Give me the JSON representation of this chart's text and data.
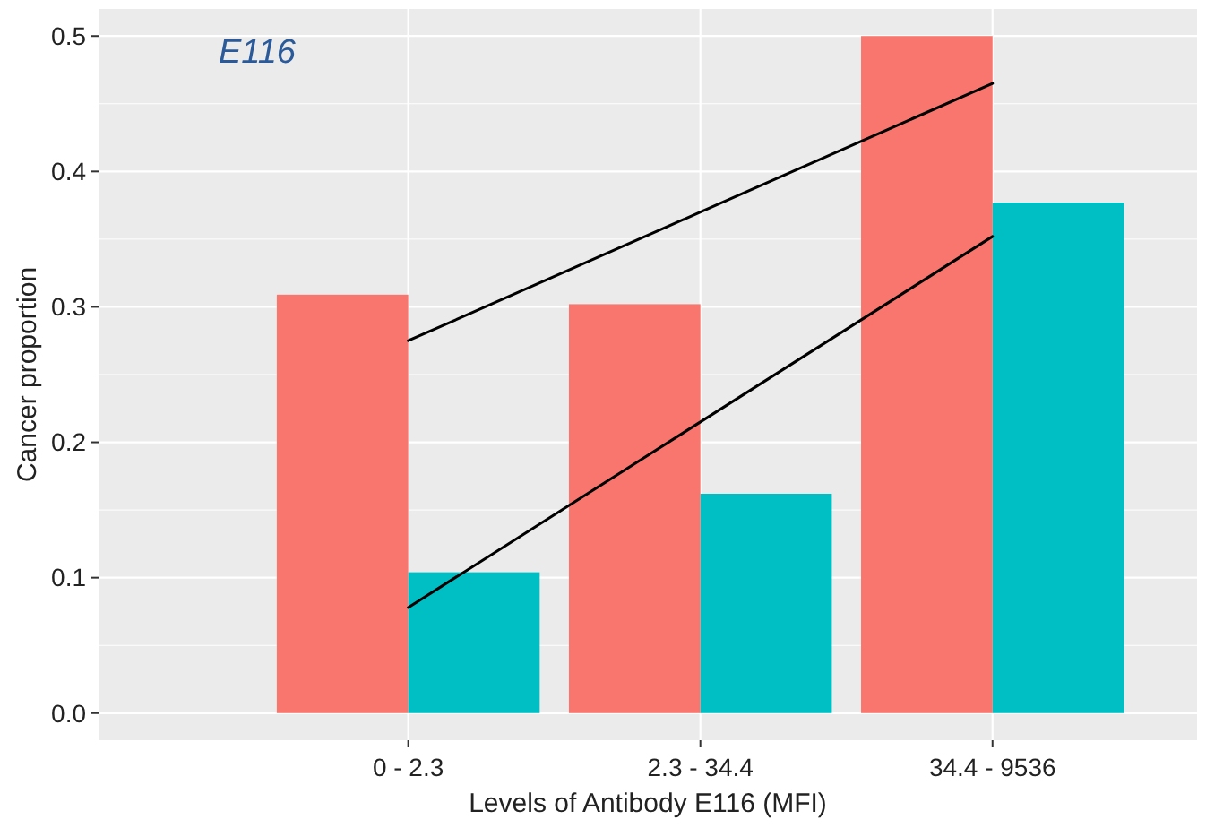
{
  "chart_data": {
    "type": "bar",
    "title": "E116",
    "xlabel": "Levels of Antibody E116 (MFI)",
    "ylabel": "Cancer proportion",
    "categories": [
      "0 - 2.3",
      "2.3 - 34.4",
      "34.4 - 9536"
    ],
    "series": [
      {
        "color": "#f8766d",
        "values": [
          0.309,
          0.302,
          0.5
        ]
      },
      {
        "color": "#00bfc4",
        "values": [
          0.104,
          0.162,
          0.377
        ]
      },
      {
        "type": "line",
        "color": "#000000",
        "x": [
          "0 - 2.3",
          "2.3 - 34.4",
          "34.4 - 9536"
        ],
        "values": [
          0.275,
          0.37,
          0.465
        ]
      },
      {
        "type": "line",
        "color": "#000000",
        "x": [
          "0 - 2.3",
          "2.3 - 34.4",
          "34.4 - 9536"
        ],
        "values": [
          0.078,
          0.215,
          0.352
        ]
      }
    ],
    "ylim": [
      -0.02,
      0.52
    ],
    "yticks": [
      {
        "value": 0,
        "label": "0.0"
      },
      0.1,
      0.2,
      0.3,
      0.4,
      0.5
    ],
    "grid": true
  }
}
